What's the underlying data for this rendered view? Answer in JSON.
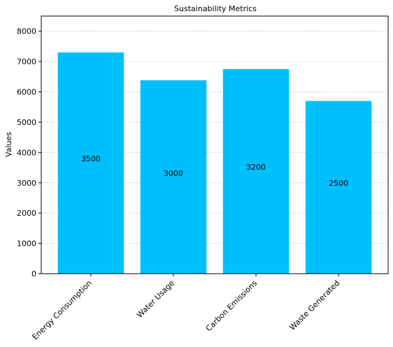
{
  "chart_data": {
    "type": "bar",
    "title": "Sustainability Metrics",
    "xlabel": "",
    "ylabel": "Values",
    "categories": [
      "Energy Consumption",
      "Water Usage",
      "Carbon Emissions",
      "Waste Generated"
    ],
    "values": [
      7300,
      6380,
      6750,
      5700
    ],
    "data_labels": [
      "3500",
      "3000",
      "3200",
      "2500"
    ],
    "data_label_values": [
      3800,
      3320,
      3520,
      3000
    ],
    "ylim": [
      0,
      8500
    ],
    "yticks": [
      0,
      1000,
      2000,
      3000,
      4000,
      5000,
      6000,
      7000,
      8000
    ],
    "grid": true,
    "bar_color": "#00bfff"
  }
}
